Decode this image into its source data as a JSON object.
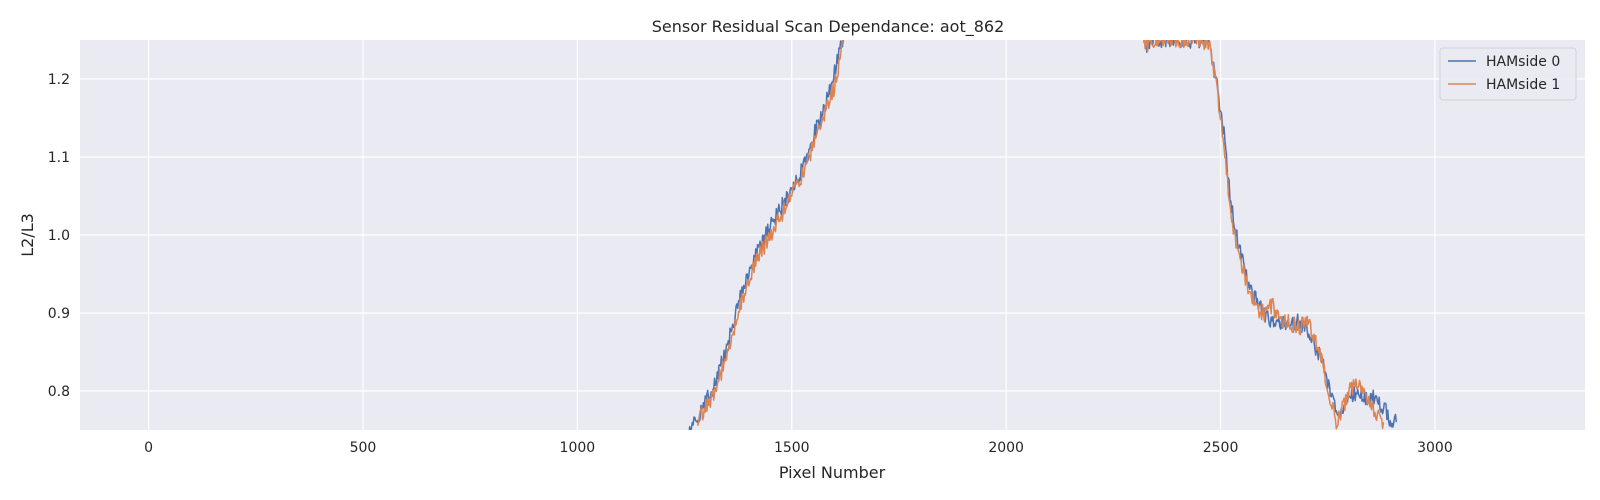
{
  "chart_data": {
    "type": "line",
    "title": "Sensor Residual Scan Dependance: aot_862",
    "xlabel": "Pixel Number",
    "ylabel": "L2/L3",
    "xlim": [
      -160,
      3350
    ],
    "ylim": [
      0.75,
      1.25
    ],
    "xticks": [
      0,
      500,
      1000,
      1500,
      2000,
      2500,
      3000
    ],
    "yticks": [
      0.8,
      0.9,
      1.0,
      1.1,
      1.2
    ],
    "xtick_labels": [
      "0",
      "500",
      "1000",
      "1500",
      "2000",
      "2500",
      "3000"
    ],
    "ytick_labels": [
      "0.8",
      "0.9",
      "1.0",
      "1.1",
      "1.2"
    ],
    "grid": true,
    "legend_position": "top-right",
    "background_color": "#eaeaf2",
    "series": [
      {
        "name": "HAMside 0",
        "color": "#4c72b0",
        "x": [
          1260,
          1280,
          1300,
          1320,
          1340,
          1360,
          1380,
          1400,
          1420,
          1440,
          1460,
          1480,
          1500,
          1520,
          1540,
          1560,
          1580,
          1600,
          1610,
          1620,
          2320,
          2330,
          2340,
          2450,
          2470,
          2480,
          2490,
          2500,
          2510,
          2520,
          2530,
          2540,
          2560,
          2580,
          2600,
          2620,
          2640,
          2660,
          2680,
          2700,
          2720,
          2740,
          2760,
          2780,
          2800,
          2820,
          2840,
          2860,
          2880,
          2900,
          2910
        ],
        "y": [
          0.75,
          0.76,
          0.79,
          0.81,
          0.84,
          0.88,
          0.92,
          0.95,
          0.98,
          1.0,
          1.02,
          1.04,
          1.06,
          1.08,
          1.11,
          1.14,
          1.17,
          1.21,
          1.23,
          1.25,
          1.25,
          1.24,
          1.25,
          1.25,
          1.25,
          1.23,
          1.2,
          1.16,
          1.12,
          1.06,
          1.02,
          0.99,
          0.95,
          0.92,
          0.9,
          0.89,
          0.89,
          0.88,
          0.89,
          0.88,
          0.86,
          0.83,
          0.79,
          0.77,
          0.79,
          0.8,
          0.79,
          0.79,
          0.78,
          0.76,
          0.76
        ]
      },
      {
        "name": "HAMside 1",
        "color": "#dd8452",
        "x": [
          1280,
          1300,
          1320,
          1340,
          1360,
          1380,
          1400,
          1420,
          1440,
          1460,
          1480,
          1500,
          1520,
          1540,
          1560,
          1580,
          1600,
          1610,
          1620,
          2320,
          2330,
          2340,
          2460,
          2475,
          2490,
          2500,
          2510,
          2520,
          2530,
          2540,
          2560,
          2580,
          2600,
          2620,
          2640,
          2660,
          2680,
          2700,
          2720,
          2740,
          2760,
          2770,
          2780,
          2800,
          2820,
          2840,
          2860,
          2880
        ],
        "y": [
          0.76,
          0.78,
          0.8,
          0.83,
          0.87,
          0.91,
          0.94,
          0.97,
          0.99,
          1.01,
          1.03,
          1.05,
          1.07,
          1.1,
          1.13,
          1.16,
          1.19,
          1.22,
          1.25,
          1.25,
          1.24,
          1.25,
          1.25,
          1.24,
          1.19,
          1.15,
          1.1,
          1.05,
          1.01,
          0.98,
          0.94,
          0.91,
          0.9,
          0.91,
          0.89,
          0.89,
          0.88,
          0.89,
          0.87,
          0.83,
          0.78,
          0.76,
          0.77,
          0.8,
          0.81,
          0.79,
          0.77,
          0.76
        ]
      }
    ]
  }
}
